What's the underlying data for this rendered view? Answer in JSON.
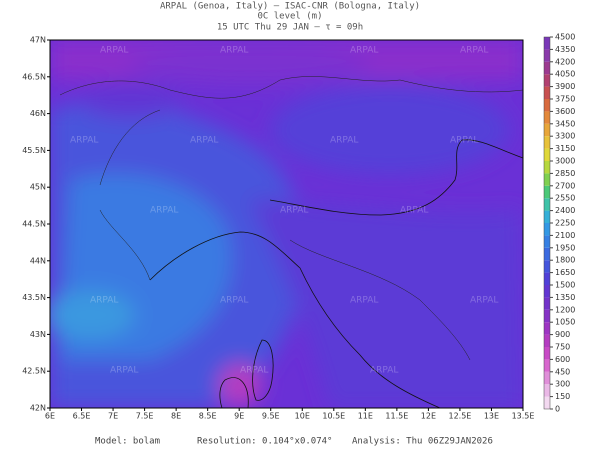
{
  "header": {
    "line1": "ARPAL (Genoa, Italy)  –  ISAC-CNR (Bologna, Italy)",
    "line2": "0C level (m)",
    "line3": "15 UTC Thu 29 JAN  –  τ = 09h"
  },
  "map": {
    "xticks": [
      "6E",
      "6.5E",
      "7E",
      "7.5E",
      "8E",
      "8.5E",
      "9E",
      "9.5E",
      "10E",
      "10.5E",
      "11E",
      "11.5E",
      "12E",
      "12.5E",
      "13E",
      "13.5E"
    ],
    "yticks": [
      "47N",
      "46.5N",
      "46N",
      "45.5N",
      "45N",
      "44.5N",
      "44N",
      "43.5N",
      "43N",
      "42.5N",
      "42N"
    ],
    "watermark": "ARPAL"
  },
  "colorbar": {
    "levels": [
      0,
      150,
      300,
      450,
      600,
      750,
      900,
      1050,
      1200,
      1350,
      1500,
      1650,
      1800,
      1950,
      2100,
      2250,
      2400,
      2550,
      2700,
      2850,
      3000,
      3150,
      3300,
      3450,
      3600,
      3750,
      3900,
      4050,
      4200,
      4350,
      4500
    ],
    "colors": [
      "#f3d9f0",
      "#eab8e6",
      "#e08fd9",
      "#d867ce",
      "#c84ac6",
      "#b43cc1",
      "#9d35c3",
      "#8633c6",
      "#7333ca",
      "#6236d2",
      "#5040d8",
      "#4455dc",
      "#3b6ae0",
      "#3680e3",
      "#3398e4",
      "#35b0d8",
      "#3ec3a8",
      "#4bc978",
      "#7fd050",
      "#b6d83f",
      "#dfd83a",
      "#e8c23a",
      "#e8a63a",
      "#e3883a",
      "#d86a3e",
      "#c85050",
      "#b24070",
      "#9c3a90",
      "#8a3aaa",
      "#7a38b8"
    ]
  },
  "footer": {
    "model": "Model: bolam",
    "resolution": "Resolution: 0.104°x0.074°",
    "analysis": "Analysis: Thu 06Z29JAN2026"
  }
}
